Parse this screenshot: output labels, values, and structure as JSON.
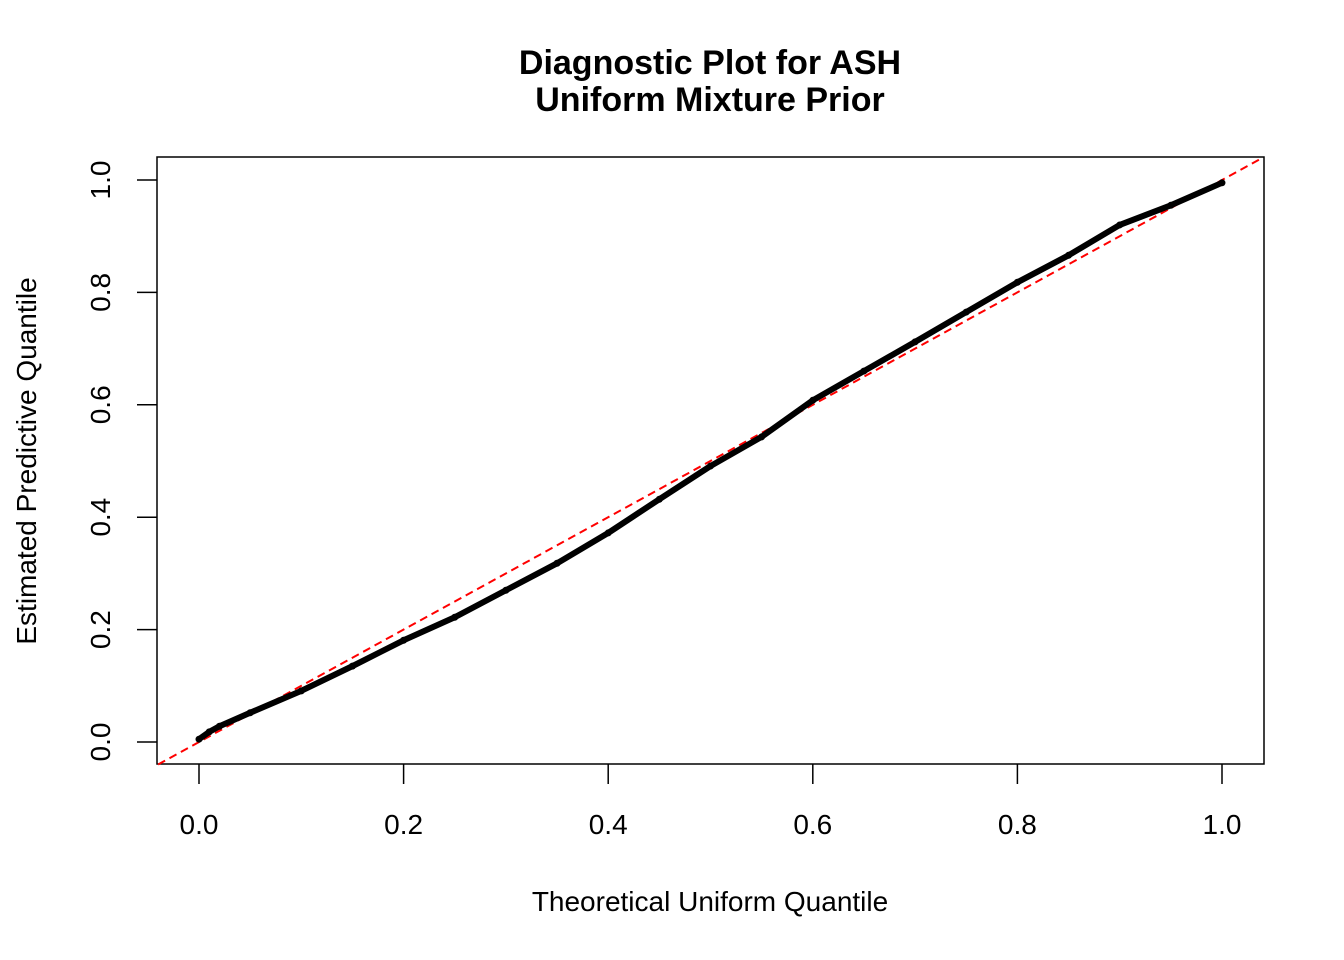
{
  "chart_data": {
    "type": "scatter",
    "title": "Diagnostic Plot for ASH",
    "subtitle": "Uniform Mixture Prior",
    "xlabel": "Theoretical Uniform Quantile",
    "ylabel": "Estimated Predictive Quantile",
    "xlim": [
      -0.04,
      1.04
    ],
    "ylim": [
      -0.04,
      1.04
    ],
    "x_ticks": [
      "0.0",
      "0.2",
      "0.4",
      "0.6",
      "0.8",
      "1.0"
    ],
    "y_ticks": [
      "0.0",
      "0.2",
      "0.4",
      "0.6",
      "0.8",
      "1.0"
    ],
    "grid": false,
    "points_color": "#000000",
    "reference_line": {
      "intercept": 0,
      "slope": 1,
      "color": "#ff0000",
      "style": "dashed"
    },
    "series": [
      {
        "x": [
          0.0,
          0.01,
          0.02,
          0.05,
          0.1,
          0.15,
          0.2,
          0.25,
          0.3,
          0.35,
          0.4,
          0.45,
          0.5,
          0.55,
          0.6,
          0.65,
          0.7,
          0.75,
          0.8,
          0.85,
          0.9,
          0.95,
          1.0
        ],
        "y": [
          0.005,
          0.018,
          0.028,
          0.052,
          0.091,
          0.135,
          0.181,
          0.222,
          0.27,
          0.318,
          0.372,
          0.432,
          0.491,
          0.543,
          0.608,
          0.66,
          0.712,
          0.765,
          0.818,
          0.866,
          0.92,
          0.955,
          0.995
        ]
      }
    ]
  }
}
